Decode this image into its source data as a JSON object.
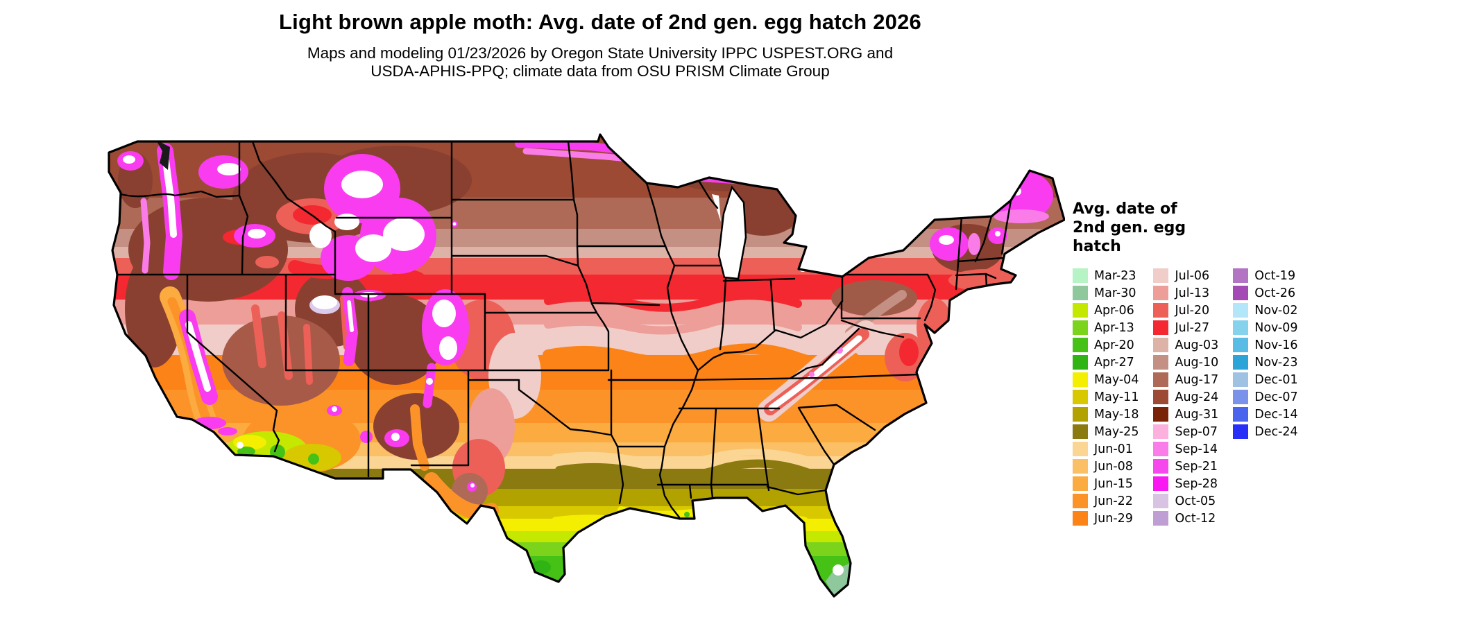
{
  "header": {
    "title": "Light brown apple moth: Avg. date of 2nd gen. egg hatch 2026",
    "subtitle_line1": "Maps and modeling 01/23/2026 by Oregon State University IPPC USPEST.ORG and",
    "subtitle_line2": "USDA-APHIS-PPQ; climate data from OSU PRISM Climate Group"
  },
  "legend": {
    "title_lines": [
      "Avg. date of",
      "2nd gen. egg",
      "hatch"
    ],
    "columns": [
      [
        {
          "date": "Mar-23",
          "color": "#b6f4c6"
        },
        {
          "date": "Mar-30",
          "color": "#8ec89c"
        },
        {
          "date": "Apr-06",
          "color": "#c4e800"
        },
        {
          "date": "Apr-13",
          "color": "#7cd31c"
        },
        {
          "date": "Apr-20",
          "color": "#46c216"
        },
        {
          "date": "Apr-27",
          "color": "#30b414"
        },
        {
          "date": "May-04",
          "color": "#f4ee00"
        },
        {
          "date": "May-11",
          "color": "#d8c800"
        },
        {
          "date": "May-18",
          "color": "#b2a200"
        },
        {
          "date": "May-25",
          "color": "#8a7a10"
        },
        {
          "date": "Jun-01",
          "color": "#fbd593"
        },
        {
          "date": "Jun-08",
          "color": "#fbc065"
        },
        {
          "date": "Jun-15",
          "color": "#fbab3f"
        },
        {
          "date": "Jun-22",
          "color": "#fb9328"
        },
        {
          "date": "Jun-29",
          "color": "#fb8318"
        }
      ],
      [
        {
          "date": "Jul-06",
          "color": "#f0cdc9"
        },
        {
          "date": "Jul-13",
          "color": "#ee9e98"
        },
        {
          "date": "Jul-20",
          "color": "#ec6058"
        },
        {
          "date": "Jul-27",
          "color": "#f42830"
        },
        {
          "date": "Aug-03",
          "color": "#ddb3a8"
        },
        {
          "date": "Aug-10",
          "color": "#c49084"
        },
        {
          "date": "Aug-17",
          "color": "#ae6a56"
        },
        {
          "date": "Aug-24",
          "color": "#9c4a34"
        },
        {
          "date": "Aug-31",
          "color": "#7a2208"
        },
        {
          "date": "Sep-07",
          "color": "#fcb0de"
        },
        {
          "date": "Sep-14",
          "color": "#fa7ce8"
        },
        {
          "date": "Sep-21",
          "color": "#f648ec"
        },
        {
          "date": "Sep-28",
          "color": "#fa18f2"
        },
        {
          "date": "Oct-05",
          "color": "#d9c3e3"
        },
        {
          "date": "Oct-12",
          "color": "#bf9ed3"
        }
      ],
      [
        {
          "date": "Oct-19",
          "color": "#b474c4"
        },
        {
          "date": "Oct-26",
          "color": "#a44ab4"
        },
        {
          "date": "Nov-02",
          "color": "#b4e6fa"
        },
        {
          "date": "Nov-09",
          "color": "#84d2ec"
        },
        {
          "date": "Nov-16",
          "color": "#58bce4"
        },
        {
          "date": "Nov-23",
          "color": "#2ca4d8"
        },
        {
          "date": "Dec-01",
          "color": "#a0c2e2"
        },
        {
          "date": "Dec-07",
          "color": "#7a92ea"
        },
        {
          "date": "Dec-14",
          "color": "#4a64ee"
        },
        {
          "date": "Dec-24",
          "color": "#2830f8"
        }
      ]
    ]
  },
  "chart_data": {
    "type": "choropleth_map",
    "title": "Light brown apple moth: Avg. date of 2nd gen. egg hatch 2026",
    "region": "Contiguous United States with state borders",
    "variable": "Avg. date of 2nd gen. egg hatch",
    "legend_position": "right",
    "categories": [
      "Mar-23",
      "Mar-30",
      "Apr-06",
      "Apr-13",
      "Apr-20",
      "Apr-27",
      "May-04",
      "May-11",
      "May-18",
      "May-25",
      "Jun-01",
      "Jun-08",
      "Jun-15",
      "Jun-22",
      "Jun-29",
      "Jul-06",
      "Jul-13",
      "Jul-20",
      "Jul-27",
      "Aug-03",
      "Aug-10",
      "Aug-17",
      "Aug-24",
      "Aug-31",
      "Sep-07",
      "Sep-14",
      "Sep-21",
      "Sep-28",
      "Oct-05",
      "Oct-12",
      "Oct-19",
      "Oct-26",
      "Nov-02",
      "Nov-09",
      "Nov-16",
      "Nov-23",
      "Dec-01",
      "Dec-07",
      "Dec-14",
      "Dec-24"
    ],
    "palette": [
      "#b6f4c6",
      "#8ec89c",
      "#c4e800",
      "#7cd31c",
      "#46c216",
      "#30b414",
      "#f4ee00",
      "#d8c800",
      "#b2a200",
      "#8a7a10",
      "#fbd593",
      "#fbc065",
      "#fbab3f",
      "#fb9328",
      "#fb8318",
      "#f0cdc9",
      "#ee9e98",
      "#ec6058",
      "#f42830",
      "#ddb3a8",
      "#c49084",
      "#ae6a56",
      "#9c4a34",
      "#7a2208",
      "#fcb0de",
      "#fa7ce8",
      "#f648ec",
      "#fa18f2",
      "#d9c3e3",
      "#bf9ed3",
      "#b474c4",
      "#a44ab4",
      "#b4e6fa",
      "#84d2ec",
      "#58bce4",
      "#2ca4d8",
      "#a0c2e2",
      "#7a92ea",
      "#4a64ee",
      "#2830f8"
    ]
  }
}
